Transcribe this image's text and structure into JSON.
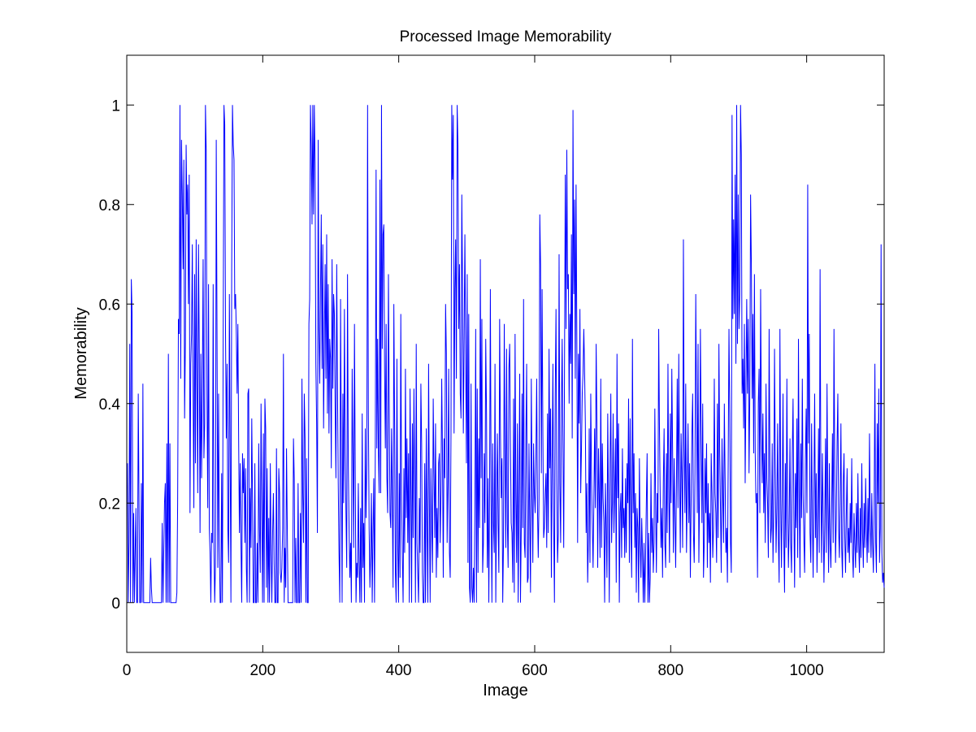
{
  "chart_data": {
    "type": "line",
    "title": "Processed Image Memorability",
    "xlabel": "Image",
    "ylabel": "Memorability",
    "xlim": [
      0,
      1114
    ],
    "ylim": [
      -0.1,
      1.1
    ],
    "xticks": [
      0,
      200,
      400,
      600,
      800,
      1000
    ],
    "yticks": [
      0,
      0.2,
      0.4,
      0.6,
      0.8,
      1
    ],
    "xtick_labels": [
      "0",
      "200",
      "400",
      "600",
      "800",
      "1000"
    ],
    "ytick_labels": [
      "0",
      "0.2",
      "0.4",
      "0.6",
      "0.8",
      "1"
    ],
    "grid": false,
    "legend": "none",
    "line_color": "#0000ff",
    "series": [
      {
        "name": "",
        "x_start": 1,
        "x_step": 1,
        "values": [
          0.28,
          0,
          0.12,
          0.52,
          0,
          0.65,
          0.58,
          0,
          0.18,
          0,
          0.1,
          0.19,
          0,
          0,
          0.42,
          0.2,
          0,
          0,
          0.24,
          0,
          0.44,
          0,
          0,
          0,
          0,
          0,
          0,
          0,
          0,
          0,
          0.09,
          0.03,
          0,
          0,
          0,
          0,
          0,
          0,
          0,
          0,
          0,
          0,
          0,
          0,
          0,
          0.16,
          0,
          0.1,
          0.2,
          0.24,
          0,
          0.32,
          0,
          0.5,
          0,
          0.32,
          0,
          0,
          0,
          0,
          0,
          0,
          0,
          0,
          0.02,
          0.2,
          0.57,
          0.54,
          1,
          0.45,
          0.93,
          0.82,
          0.67,
          0.89,
          0.37,
          0.52,
          0.92,
          0.78,
          0.84,
          0.6,
          0.86,
          0.18,
          0.48,
          0.54,
          0.72,
          0.43,
          0.19,
          0.66,
          0.28,
          0.73,
          0.45,
          0.22,
          0.72,
          0.51,
          0.14,
          0.5,
          0.25,
          0.44,
          0.69,
          0.29,
          0.36,
          1,
          0.91,
          0.42,
          0.19,
          0.64,
          0.15,
          0.1,
          0,
          0.14,
          0.12,
          0.64,
          0.11,
          0,
          0.08,
          0.93,
          0.54,
          0.07,
          0.42,
          0.12,
          0,
          0,
          0.26,
          0,
          0.55,
          1,
          0.96,
          0.54,
          0.33,
          0.48,
          0.15,
          0.08,
          0.62,
          0.3,
          0,
          0.67,
          1,
          0.92,
          0.89,
          0.59,
          0.62,
          0.54,
          0.42,
          0.56,
          0.33,
          0.14,
          0.28,
          0.12,
          0,
          0.3,
          0.22,
          0.29,
          0.12,
          0.27,
          0.07,
          0,
          0.42,
          0.43,
          0,
          0.23,
          0.11,
          0.37,
          0.2,
          0,
          0,
          0.28,
          0,
          0,
          0.12,
          0,
          0.32,
          0.15,
          0.06,
          0.4,
          0.18,
          0,
          0.34,
          0,
          0.41,
          0.35,
          0.03,
          0.27,
          0,
          0.17,
          0,
          0.28,
          0.1,
          0,
          0.14,
          0.22,
          0.08,
          0,
          0,
          0.31,
          0,
          0,
          0.27,
          0.22,
          0.06,
          0.04,
          0.07,
          0.15,
          0.5,
          0,
          0.11,
          0.03,
          0.31,
          0.15,
          0,
          0,
          0,
          0,
          0,
          0,
          0,
          0.33,
          0.25,
          0,
          0.13,
          0,
          0,
          0.24,
          0,
          0,
          0.18,
          0,
          0.45,
          0.22,
          0.12,
          0.42,
          0.33,
          0,
          0.29,
          0,
          0,
          0.56,
          0.61,
          1,
          0.92,
          0.76,
          1,
          0.78,
          1,
          0.88,
          0.48,
          0.36,
          0.14,
          0.93,
          0.55,
          0.44,
          0.63,
          0.78,
          0.47,
          0.72,
          0.35,
          0.53,
          0.68,
          0.45,
          0.74,
          0.38,
          0.64,
          0.34,
          0.53,
          0.49,
          0.27,
          0.69,
          0.43,
          0.62,
          0.58,
          0.39,
          0.25,
          0.68,
          0.44,
          0.24,
          0.1,
          0,
          0.61,
          0.29,
          0,
          0.42,
          0.2,
          0.59,
          0.3,
          0.18,
          0.07,
          0.66,
          0.28,
          0.15,
          0.05,
          0.12,
          0,
          0.47,
          0.3,
          0.11,
          0.56,
          0.26,
          0,
          0.08,
          0.05,
          0.24,
          0.08,
          0,
          0.19,
          0,
          0.38,
          0.07,
          0.16,
          0,
          0.35,
          0.17,
          0.28,
          1,
          0.38,
          0.15,
          0.03,
          0.1,
          0.22,
          0,
          0.14,
          0.25,
          0,
          0.31,
          0.87,
          0.31,
          0.53,
          0.3,
          0.22,
          0.85,
          0.22,
          1,
          0.51,
          0.74,
          0.76,
          0.47,
          0.31,
          0.56,
          0.25,
          0.18,
          0.66,
          0.4,
          0.18,
          0.15,
          0.35,
          0.21,
          0.03,
          0.6,
          0.36,
          0.06,
          0,
          0.49,
          0.12,
          0,
          0.26,
          0.05,
          0.58,
          0.22,
          0.09,
          0,
          0.27,
          0.1,
          0.47,
          0.17,
          0.33,
          0.12,
          0.3,
          0,
          0.43,
          0.23,
          0,
          0.36,
          0.13,
          0.43,
          0.25,
          0,
          0.52,
          0.12,
          0.06,
          0,
          0.21,
          0.1,
          0.44,
          0.32,
          0.06,
          0,
          0,
          0.28,
          0,
          0.35,
          0.16,
          0,
          0.48,
          0.21,
          0,
          0.27,
          0.16,
          0.06,
          0.41,
          0.26,
          0.13,
          0.36,
          0.05,
          0.19,
          0.09,
          0.28,
          0.3,
          0.12,
          0.22,
          0.45,
          0.3,
          0.05,
          0.33,
          0.25,
          0.6,
          0.5,
          0.12,
          0.24,
          0.47,
          0.1,
          0.05,
          0.34,
          1,
          0.85,
          0.98,
          0.34,
          0.63,
          0.73,
          0.45,
          1,
          0.92,
          0.55,
          0.68,
          0.42,
          0.37,
          0.82,
          0.63,
          0.34,
          0.53,
          0.74,
          0.5,
          0.28,
          0.66,
          0.08,
          0.58,
          0.03,
          0,
          0.44,
          0.03,
          0,
          0.07,
          0,
          0.2,
          0.55,
          0,
          0.43,
          0.06,
          0.33,
          0.15,
          0.69,
          0.25,
          0.57,
          0.06,
          0.12,
          0.3,
          0.16,
          0.53,
          0.38,
          0.07,
          0.25,
          0,
          0.22,
          0.63,
          0.21,
          0,
          0.32,
          0.16,
          0.1,
          0.48,
          0,
          0.21,
          0.34,
          0.16,
          0.06,
          0.57,
          0.35,
          0.21,
          0.29,
          0,
          0.12,
          0.56,
          0.3,
          0.11,
          0.51,
          0.16,
          0.07,
          0.47,
          0.52,
          0.32,
          0.16,
          0.14,
          0.04,
          0.41,
          0.02,
          0.54,
          0.21,
          0.08,
          0.36,
          0,
          0.21,
          0.46,
          0,
          0.15,
          0.42,
          0.15,
          0.61,
          0.12,
          0.09,
          0.33,
          0.48,
          0.04,
          0.05,
          0.32,
          0.16,
          0.02,
          0.45,
          0.23,
          0.08,
          0.32,
          0.22,
          0.18,
          0.29,
          0.45,
          0.19,
          0.09,
          0.21,
          0.78,
          0.68,
          0.26,
          0.63,
          0.34,
          0.13,
          0.15,
          0.22,
          0.26,
          0.11,
          0.38,
          0.14,
          0.51,
          0.27,
          0.39,
          0.05,
          0.28,
          0.48,
          0.16,
          0,
          0.42,
          0.59,
          0.24,
          0.08,
          0.14,
          0.7,
          0.24,
          0.12,
          0.39,
          0.53,
          0.31,
          0.11,
          0.46,
          0.86,
          0.55,
          0.91,
          0.63,
          0.66,
          0.4,
          0.58,
          0.48,
          0.74,
          0.33,
          0.99,
          0.62,
          0.81,
          0.45,
          0.84,
          0.53,
          0.12,
          0.5,
          0.36,
          0.59,
          0.22,
          0.31,
          0.42,
          0.46,
          0.55,
          0.47,
          0.36,
          0.14,
          0.24,
          0.04,
          0.13,
          0.35,
          0.08,
          0.42,
          0.25,
          0.16,
          0.07,
          0.2,
          0.35,
          0.19,
          0.52,
          0.36,
          0.07,
          0.31,
          0.22,
          0.09,
          0.45,
          0.11,
          0.32,
          0.21,
          0.16,
          0,
          0.24,
          0.15,
          0.05,
          0.38,
          0.2,
          0,
          0.28,
          0.42,
          0.12,
          0.2,
          0.38,
          0.14,
          0.22,
          0.33,
          0.04,
          0.5,
          0.21,
          0.36,
          0,
          0.18,
          0.22,
          0.09,
          0.31,
          0.15,
          0.19,
          0.09,
          0.25,
          0.1,
          0.28,
          0.2,
          0.41,
          0.08,
          0.37,
          0.15,
          0.05,
          0.53,
          0.18,
          0.3,
          0.11,
          0.22,
          0.02,
          0.19,
          0.15,
          0,
          0.29,
          0.12,
          0.05,
          0.17,
          0.1,
          0,
          0.12,
          0,
          0.09,
          0.2,
          0.3,
          0,
          0.14,
          0,
          0.05,
          0.26,
          0.1,
          0.17,
          0.06,
          0.12,
          0.39,
          0.2,
          0.06,
          0.22,
          0.16,
          0.55,
          0.35,
          0.21,
          0.11,
          0.19,
          0.05,
          0.24,
          0.35,
          0.12,
          0.07,
          0.3,
          0.14,
          0.48,
          0.23,
          0.08,
          0.38,
          0.2,
          0.47,
          0.31,
          0.1,
          0.29,
          0.18,
          0.07,
          0.24,
          0.45,
          0.19,
          0.5,
          0.26,
          0.1,
          0.34,
          0.25,
          0.11,
          0.73,
          0.32,
          0.18,
          0.44,
          0.1,
          0.22,
          0.36,
          0.16,
          0.28,
          0.05,
          0.2,
          0.34,
          0.42,
          0.14,
          0.08,
          0.26,
          0.62,
          0.4,
          0.18,
          0.52,
          0.08,
          0.22,
          0.55,
          0.34,
          0.16,
          0.4,
          0.05,
          0.12,
          0.29,
          0.18,
          0.32,
          0.07,
          0.24,
          0.12,
          0.18,
          0.04,
          0.3,
          0.22,
          0.09,
          0.15,
          0.45,
          0.22,
          0.18,
          0.08,
          0.4,
          0.13,
          0.52,
          0.3,
          0.19,
          0.06,
          0.33,
          0.22,
          0.12,
          0.4,
          0.25,
          0.1,
          0.15,
          0.04,
          0.28,
          0.55,
          0.38,
          0.12,
          0.06,
          0.98,
          0.57,
          0.77,
          0.58,
          0.86,
          0.48,
          1,
          0.52,
          0.82,
          0.55,
          0.62,
          1,
          0.9,
          0.42,
          0.49,
          0.35,
          0.56,
          0.24,
          0.43,
          0.61,
          0.42,
          0.57,
          0.26,
          0.42,
          0.82,
          0.68,
          0.41,
          0.58,
          0.3,
          0.66,
          0.3,
          0.2,
          0.22,
          0.05,
          0.4,
          0.47,
          0.18,
          0.63,
          0.37,
          0.24,
          0.38,
          0.18,
          0.3,
          0.12,
          0.44,
          0.25,
          0.2,
          0.09,
          0.55,
          0.28,
          0.12,
          0.15,
          0.32,
          0.08,
          0.18,
          0.51,
          0.27,
          0.1,
          0.19,
          0.36,
          0.13,
          0.04,
          0.55,
          0.21,
          0.07,
          0.22,
          0.42,
          0.13,
          0.02,
          0.28,
          0.11,
          0.45,
          0.2,
          0.07,
          0.16,
          0.33,
          0.12,
          0.06,
          0.3,
          0.41,
          0.18,
          0.03,
          0.26,
          0.15,
          0.37,
          0.09,
          0.53,
          0.21,
          0.05,
          0.32,
          0.17,
          0.45,
          0.22,
          0.13,
          0.06,
          0.29,
          0.39,
          0.18,
          0.84,
          0.32,
          0.54,
          0.14,
          0.08,
          0.36,
          0.18,
          0.05,
          0.22,
          0.42,
          0.13,
          0.26,
          0.06,
          0.16,
          0.35,
          0.1,
          0.67,
          0.24,
          0.08,
          0.3,
          0.18,
          0.04,
          0.15,
          0.33,
          0.1,
          0.44,
          0.2,
          0.06,
          0.28,
          0.12,
          0.07,
          0.19,
          0.34,
          0.12,
          0.55,
          0.27,
          0.08,
          0.17,
          0.32,
          0.42,
          0.15,
          0.09,
          0.2,
          0.36,
          0.11,
          0.05,
          0.24,
          0.3,
          0.13,
          0.06,
          0.18,
          0.27,
          0.1,
          0.15,
          0.08,
          0.2,
          0.12,
          0.29,
          0.1,
          0.05,
          0.18,
          0.12,
          0.07,
          0.2,
          0.1,
          0.26,
          0.12,
          0.06,
          0.19,
          0.09,
          0.28,
          0.14,
          0.07,
          0.2,
          0.11,
          0.25,
          0.15,
          0.08,
          0.21,
          0.1,
          0.34,
          0.16,
          0.09,
          0.22,
          0.12,
          0.06,
          0.18,
          0.48,
          0.12,
          0.06,
          0.36,
          0.2,
          0.43,
          0.08,
          0.15,
          0.72,
          0.1,
          0.04,
          0.06,
          0.03
        ],
        "note_zeros": "values near 0 are drawn as 0"
      }
    ]
  }
}
